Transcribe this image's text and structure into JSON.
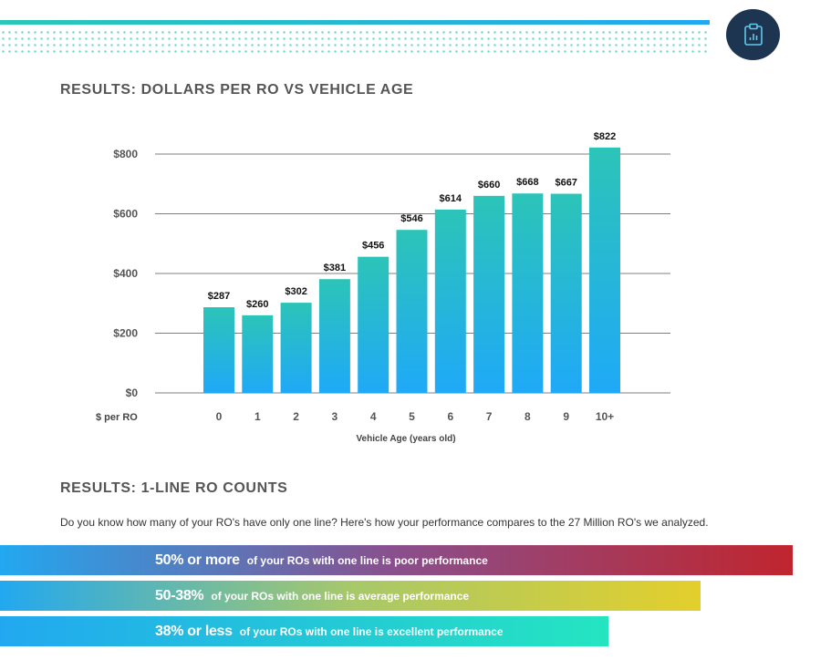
{
  "header": {
    "icon": "clipboard-chart-icon"
  },
  "chart_section": {
    "title": "RESULTS: DOLLARS PER RO VS VEHICLE AGE"
  },
  "chart_data": {
    "type": "bar",
    "title": "RESULTS: DOLLARS PER RO VS VEHICLE AGE",
    "xlabel": "Vehicle Age (years old)",
    "ylabel": "$ per RO",
    "categories": [
      "0",
      "1",
      "2",
      "3",
      "4",
      "5",
      "6",
      "7",
      "8",
      "9",
      "10+"
    ],
    "values": [
      287,
      260,
      302,
      381,
      456,
      546,
      614,
      660,
      668,
      667,
      822
    ],
    "value_labels": [
      "$287",
      "$260",
      "$302",
      "$381",
      "$456",
      "$546",
      "$614",
      "$660",
      "$668",
      "$667",
      "$822"
    ],
    "yticks": [
      0,
      200,
      400,
      600,
      800
    ],
    "ytick_labels": [
      "$0",
      "$200",
      "$400",
      "$600",
      "$800"
    ],
    "grid": true,
    "colors": {
      "bar_top": "#2cc4b8",
      "bar_bottom": "#1fa9f7",
      "grid": "#555555"
    }
  },
  "counts_section": {
    "title": "RESULTS: 1-LINE RO COUNTS",
    "intro": "Do you know how many of your RO's have only one line? Here's how your performance compares to the 27 Million RO's we analyzed.",
    "bands": [
      {
        "big": "50% or more",
        "small": "of your ROs with one line is poor performance",
        "level": "poor"
      },
      {
        "big": "50-38%",
        "small": "of your ROs with one line is average performance",
        "level": "average"
      },
      {
        "big": "38% or less",
        "small": "of your ROs with one line is excellent performance",
        "level": "excellent"
      }
    ],
    "colors": {
      "poor": [
        "#22a8f0",
        "#8a4f8c",
        "#c0252e"
      ],
      "average": [
        "#22a8f0",
        "#a7c86a",
        "#e3cf2c"
      ],
      "excellent": [
        "#22a8f0",
        "#24e5c0"
      ]
    }
  }
}
